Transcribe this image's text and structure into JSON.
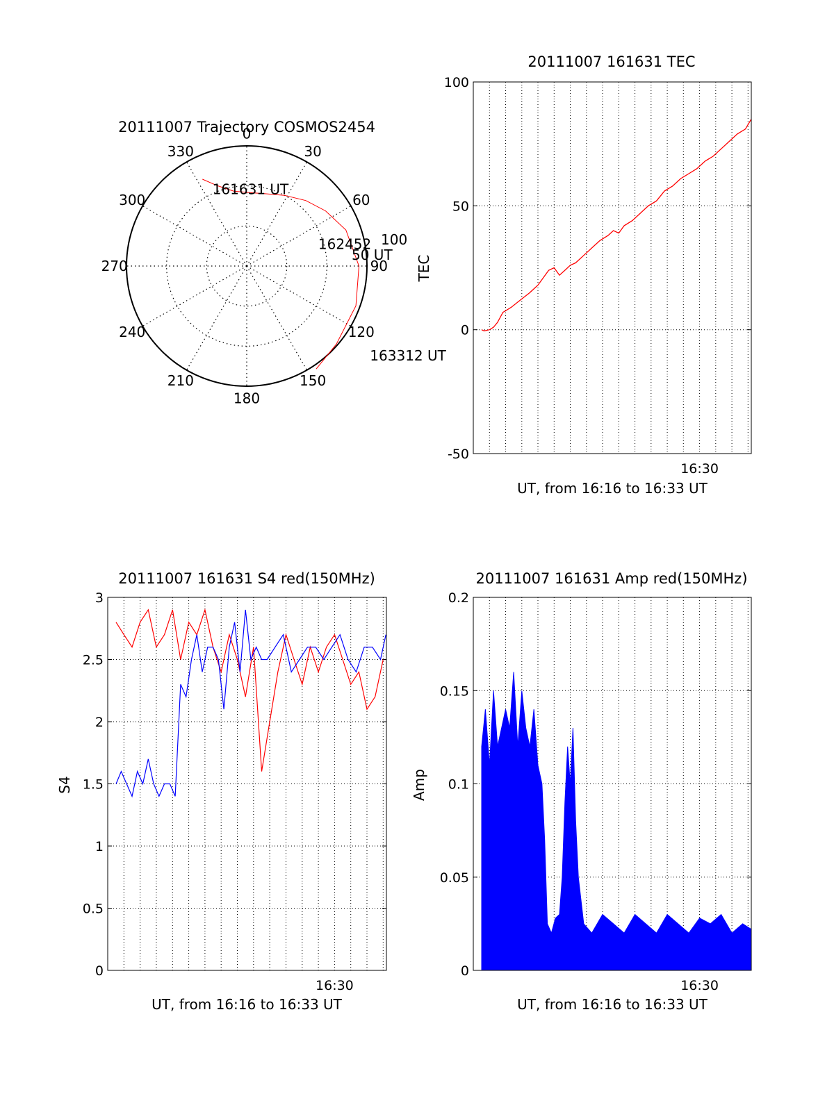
{
  "colors": {
    "trace_red": "#ff0000",
    "trace_blue": "#0000ff",
    "axis": "#000000",
    "grid": "#000000",
    "background": "#ffffff"
  },
  "chart_data": [
    {
      "id": "trajectory",
      "type": "polar",
      "title": "20111007 Trajectory COSMOS2454",
      "azimuth_labels": [
        "0",
        "30",
        "60",
        "90",
        "120",
        "150",
        "180",
        "210",
        "240",
        "270",
        "300",
        "330"
      ],
      "azimuth_deg": [
        0,
        30,
        60,
        90,
        120,
        150,
        180,
        210,
        240,
        270,
        300,
        330
      ],
      "radial_circle_elevations": [
        30,
        60
      ],
      "radial_tick_label": "100",
      "grid": true,
      "track": {
        "color": "red",
        "points": [
          {
            "az": 333,
            "zenith": 73
          },
          {
            "az": 340,
            "zenith": 64
          },
          {
            "az": 350,
            "zenith": 57
          },
          {
            "az": 2,
            "zenith": 55
          },
          {
            "az": 15,
            "zenith": 56
          },
          {
            "az": 28,
            "zenith": 60
          },
          {
            "az": 42,
            "zenith": 66
          },
          {
            "az": 55,
            "zenith": 72
          },
          {
            "az": 70,
            "zenith": 79
          },
          {
            "az": 90,
            "zenith": 84
          },
          {
            "az": 110,
            "zenith": 87
          },
          {
            "az": 131,
            "zenith": 89
          },
          {
            "az": 146,
            "zenith": 93
          }
        ]
      },
      "annotations": [
        {
          "text": "161631 UT",
          "az": 336,
          "zenith": 63
        },
        {
          "text": "162452",
          "az": 73,
          "zenith": 56
        },
        {
          "text": "50 UT",
          "az": 84,
          "zenith": 79
        },
        {
          "text": "163312 UT",
          "az": 126,
          "zenith": 114
        }
      ]
    },
    {
      "id": "tec",
      "type": "line",
      "title": "20111007 161631 TEC",
      "xlabel": "UT, from 16:16 to 16:33 UT",
      "ylabel": "TEC",
      "x_unit": "seconds after 16:16:00 UT",
      "xlim": [
        0,
        1032
      ],
      "ylim": [
        -50,
        100
      ],
      "yticks": [
        -50,
        0,
        50,
        100
      ],
      "xtick_labels": [
        {
          "t": 840,
          "label": "16:30"
        }
      ],
      "grid": true,
      "series": [
        {
          "color": "red",
          "x": [
            31,
            40,
            60,
            75,
            90,
            110,
            140,
            175,
            210,
            240,
            260,
            280,
            300,
            320,
            340,
            360,
            380,
            410,
            440,
            470,
            500,
            520,
            540,
            560,
            590,
            620,
            650,
            680,
            710,
            740,
            770,
            800,
            830,
            860,
            890,
            920,
            950,
            980,
            1010,
            1032
          ],
          "y": [
            0,
            -0.5,
            0,
            1,
            3,
            7,
            9,
            12,
            15,
            18,
            21,
            24,
            25,
            22,
            24,
            26,
            27,
            30,
            33,
            36,
            38,
            40,
            39,
            42,
            44,
            47,
            50,
            52,
            56,
            58,
            61,
            63,
            65,
            68,
            70,
            73,
            76,
            79,
            81,
            85
          ]
        }
      ]
    },
    {
      "id": "s4",
      "type": "line",
      "title": "20111007 161631 S4 red(150MHz)",
      "xlabel": "UT, from 16:16 to 16:33 UT",
      "ylabel": "S4",
      "x_unit": "seconds after 16:16:00 UT",
      "xlim": [
        0,
        1032
      ],
      "ylim": [
        0,
        3
      ],
      "yticks": [
        0,
        0.5,
        1,
        1.5,
        2,
        2.5,
        3
      ],
      "ytick_labels": [
        "0",
        "0.5",
        "1",
        "1.5",
        "2",
        "2.5",
        "3"
      ],
      "xtick_labels": [
        {
          "t": 840,
          "label": "16:30"
        }
      ],
      "grid": true,
      "series": [
        {
          "color": "red",
          "x": [
            31,
            60,
            90,
            120,
            150,
            180,
            210,
            240,
            270,
            300,
            330,
            360,
            390,
            420,
            450,
            480,
            510,
            540,
            570,
            600,
            630,
            660,
            690,
            720,
            750,
            780,
            810,
            840,
            870,
            900,
            930,
            960,
            990,
            1020
          ],
          "y": [
            2.8,
            2.7,
            2.6,
            2.8,
            2.9,
            2.6,
            2.7,
            2.9,
            2.5,
            2.8,
            2.7,
            2.9,
            2.6,
            2.4,
            2.7,
            2.5,
            2.2,
            2.6,
            1.6,
            2.0,
            2.4,
            2.7,
            2.5,
            2.3,
            2.6,
            2.4,
            2.6,
            2.7,
            2.5,
            2.3,
            2.4,
            2.1,
            2.2,
            2.5
          ]
        },
        {
          "color": "blue",
          "x": [
            31,
            50,
            70,
            90,
            110,
            130,
            150,
            170,
            190,
            210,
            230,
            250,
            270,
            290,
            310,
            330,
            350,
            370,
            390,
            410,
            430,
            450,
            470,
            490,
            510,
            530,
            550,
            570,
            590,
            620,
            650,
            680,
            710,
            740,
            770,
            800,
            830,
            860,
            890,
            920,
            950,
            980,
            1010,
            1030
          ],
          "y": [
            1.5,
            1.6,
            1.5,
            1.4,
            1.6,
            1.5,
            1.7,
            1.5,
            1.4,
            1.5,
            1.5,
            1.4,
            2.3,
            2.2,
            2.5,
            2.7,
            2.4,
            2.6,
            2.6,
            2.5,
            2.1,
            2.6,
            2.8,
            2.4,
            2.9,
            2.5,
            2.6,
            2.5,
            2.5,
            2.6,
            2.7,
            2.4,
            2.5,
            2.6,
            2.6,
            2.5,
            2.6,
            2.7,
            2.5,
            2.4,
            2.6,
            2.6,
            2.5,
            2.7
          ]
        }
      ]
    },
    {
      "id": "amp",
      "type": "line",
      "title": "20111007 161631 Amp red(150MHz)",
      "xlabel": "UT, from 16:16 to 16:33 UT",
      "ylabel": "Amp",
      "x_unit": "seconds after 16:16:00 UT",
      "xlim": [
        0,
        1032
      ],
      "ylim": [
        0,
        0.2
      ],
      "yticks": [
        0,
        0.05,
        0.1,
        0.15,
        0.2
      ],
      "ytick_labels": [
        "0",
        "0.05",
        "0.1",
        "0.15",
        "0.2"
      ],
      "xtick_labels": [
        {
          "t": 840,
          "label": "16:30"
        }
      ],
      "grid": true,
      "series": [
        {
          "color": "blue",
          "x": [
            31,
            45,
            60,
            75,
            90,
            105,
            120,
            135,
            150,
            165,
            180,
            195,
            210,
            225,
            240,
            255,
            265,
            275,
            290,
            305,
            320,
            330,
            340,
            350,
            360,
            370,
            380,
            390,
            410,
            440,
            480,
            520,
            560,
            600,
            640,
            680,
            720,
            760,
            800,
            840,
            880,
            920,
            960,
            1000,
            1032
          ],
          "y": [
            0.12,
            0.14,
            0.11,
            0.15,
            0.12,
            0.13,
            0.14,
            0.13,
            0.16,
            0.12,
            0.15,
            0.13,
            0.12,
            0.14,
            0.11,
            0.1,
            0.07,
            0.025,
            0.02,
            0.028,
            0.03,
            0.05,
            0.09,
            0.12,
            0.1,
            0.13,
            0.08,
            0.05,
            0.025,
            0.02,
            0.03,
            0.025,
            0.02,
            0.03,
            0.025,
            0.02,
            0.03,
            0.025,
            0.02,
            0.028,
            0.025,
            0.03,
            0.02,
            0.025,
            0.022
          ]
        }
      ]
    }
  ]
}
